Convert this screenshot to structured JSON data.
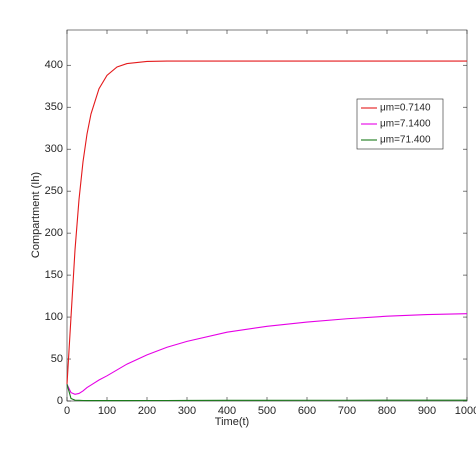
{
  "chart_data": {
    "type": "line",
    "xlabel": "Time(t)",
    "ylabel": "Compartment (Ih)",
    "x": [
      0,
      10,
      20,
      30,
      40,
      50,
      60,
      80,
      100,
      125,
      150,
      200,
      250,
      300,
      400,
      500,
      600,
      700,
      800,
      900,
      1000
    ],
    "series": [
      {
        "name": "μm=0.7140",
        "color": "#e41a1c",
        "values": [
          20,
          100,
          180,
          240,
          285,
          318,
          342,
          372,
          388,
          398,
          402,
          404.5,
          405,
          405,
          405,
          405,
          405,
          405,
          405,
          405,
          405
        ]
      },
      {
        "name": "μm=7.1400",
        "color": "#e600e6",
        "values": [
          20,
          10,
          8,
          9,
          12,
          16,
          19,
          25,
          30,
          37,
          44,
          55,
          64,
          71,
          82,
          89,
          94,
          98,
          101,
          103,
          104
        ]
      },
      {
        "name": "μm=71.400",
        "color": "#1a7a1a",
        "values": [
          20,
          3,
          1,
          0.8,
          0.6,
          0.5,
          0.5,
          0.5,
          0.5,
          0.5,
          0.5,
          0.6,
          0.6,
          0.7,
          0.8,
          0.8,
          0.9,
          0.9,
          1,
          1,
          1
        ]
      }
    ],
    "xlim": [
      0,
      1000
    ],
    "xticks": [
      0,
      100,
      200,
      300,
      400,
      500,
      600,
      700,
      800,
      900,
      1000
    ],
    "ylim": [
      0,
      442
    ],
    "yticks": [
      0,
      50,
      100,
      150,
      200,
      250,
      300,
      350,
      400
    ],
    "grid": false,
    "legend": "northeast"
  }
}
